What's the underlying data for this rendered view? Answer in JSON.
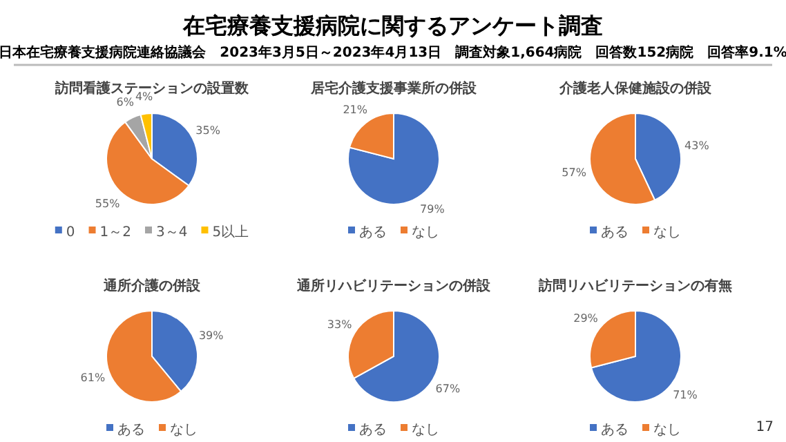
{
  "chart_data": [
    {
      "type": "pie",
      "title": "訪問看護ステーションの設置数",
      "categories": [
        "0",
        "1～2",
        "3～4",
        "5以上"
      ],
      "values": [
        35,
        55,
        6,
        4
      ],
      "colors": [
        "#4472c4",
        "#ed7d31",
        "#a5a5a5",
        "#ffc000"
      ],
      "value_labels": [
        "35%",
        "55%",
        "6%",
        "4%"
      ],
      "legend": "bottom",
      "annotations": [
        "在宅療養支援病院に関するアンケート調査",
        "日本在宅療養支援病院連絡協議会　2023年3月5日～2023年4月13日　調査対象1,664病院　回答数152病院　回答率9.1%",
        "17"
      ]
    },
    {
      "type": "pie",
      "title": "居宅介護支援事業所の併設",
      "categories": [
        "ある",
        "なし"
      ],
      "values": [
        79,
        21
      ],
      "colors": [
        "#4472c4",
        "#ed7d31"
      ],
      "value_labels": [
        "79%",
        "21%"
      ],
      "legend": "bottom"
    },
    {
      "type": "pie",
      "title": "介護老人保健施設の併設",
      "categories": [
        "ある",
        "なし"
      ],
      "values": [
        43,
        57
      ],
      "colors": [
        "#4472c4",
        "#ed7d31"
      ],
      "value_labels": [
        "43%",
        "57%"
      ],
      "legend": "bottom"
    },
    {
      "type": "pie",
      "title": "通所介護の併設",
      "categories": [
        "ある",
        "なし"
      ],
      "values": [
        39,
        61
      ],
      "colors": [
        "#4472c4",
        "#ed7d31"
      ],
      "value_labels": [
        "39%",
        "61%"
      ],
      "legend": "bottom"
    },
    {
      "type": "pie",
      "title": "通所リハビリテーションの併設",
      "categories": [
        "ある",
        "なし"
      ],
      "values": [
        67,
        33
      ],
      "colors": [
        "#4472c4",
        "#ed7d31"
      ],
      "value_labels": [
        "67%",
        "33%"
      ],
      "legend": "bottom"
    },
    {
      "type": "pie",
      "title": "訪問リハビリテーションの有無",
      "categories": [
        "ある",
        "なし"
      ],
      "values": [
        71,
        29
      ],
      "colors": [
        "#4472c4",
        "#ed7d31"
      ],
      "value_labels": [
        "71%",
        "29%"
      ],
      "legend": "bottom"
    }
  ]
}
